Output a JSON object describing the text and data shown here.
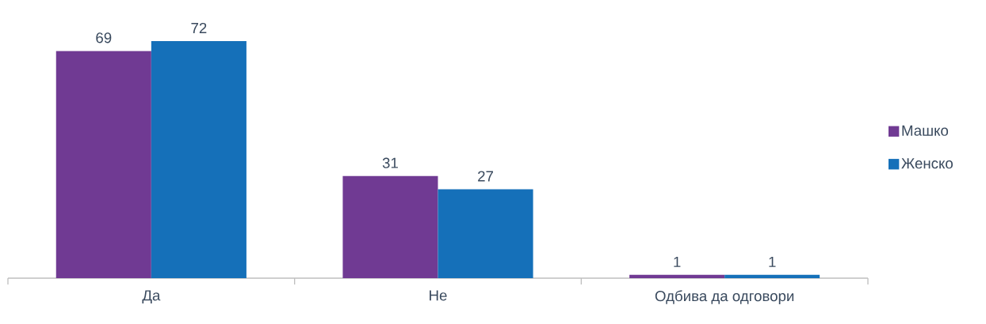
{
  "chart_data": {
    "type": "bar",
    "categories": [
      "Да",
      "Не",
      "Одбива да одговори"
    ],
    "series": [
      {
        "name": "Машко",
        "color": "#703a93",
        "values": [
          69,
          31,
          1
        ]
      },
      {
        "name": "Женско",
        "color": "#1570b9",
        "values": [
          72,
          27,
          1
        ]
      }
    ],
    "data_labels": true,
    "legend": "right"
  }
}
